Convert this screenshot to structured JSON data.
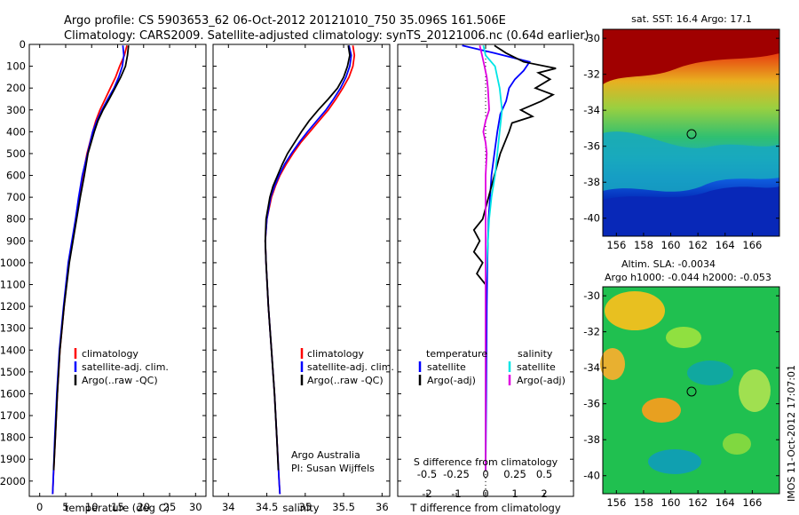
{
  "title": {
    "line1": "Argo profile: CS 5903653_62 06-Oct-2012 20121010_750 35.096S 161.506E",
    "line2": "Climatology: CARS2009. Satellite-adjusted climatology: synTS_20121006.nc (0.64d earlier)"
  },
  "chart_data": [
    {
      "type": "line",
      "name": "temperature-profile",
      "xlabel": "temperature (deg C)",
      "ylabel": "",
      "xlim": [
        -2,
        32
      ],
      "ylim": [
        2070,
        0
      ],
      "xticks": [
        "0",
        "5",
        "10",
        "15",
        "20",
        "25",
        "30"
      ],
      "yticks": [
        "0",
        "100",
        "200",
        "300",
        "400",
        "500",
        "600",
        "700",
        "800",
        "900",
        "1000",
        "1100",
        "1200",
        "1300",
        "1400",
        "1500",
        "1600",
        "1700",
        "1800",
        "1900",
        "2000"
      ],
      "legend": [
        "climatology",
        "satellite-adj. clim.",
        "Argo(..raw -QC)"
      ],
      "series": [
        {
          "name": "climatology",
          "color": "#ff0000",
          "pressure": [
            5,
            50,
            100,
            150,
            200,
            250,
            300,
            350,
            400,
            500,
            600,
            700,
            800,
            900,
            1000,
            1200,
            1400,
            1600,
            1800,
            2000,
            2060
          ],
          "values": [
            16.8,
            16.3,
            15.4,
            14.6,
            13.6,
            12.6,
            11.6,
            10.8,
            10.2,
            9.1,
            8.3,
            7.6,
            7.0,
            6.3,
            5.6,
            4.7,
            3.9,
            3.4,
            3.0,
            2.6,
            2.5
          ]
        },
        {
          "name": "satellite-adj. clim.",
          "color": "#0000ff",
          "pressure": [
            5,
            50,
            100,
            150,
            200,
            250,
            300,
            350,
            400,
            500,
            600,
            700,
            800,
            900,
            1000,
            1200,
            1400,
            1600,
            1800,
            2000,
            2060
          ],
          "values": [
            16.0,
            16.2,
            15.9,
            15.2,
            14.3,
            13.1,
            12.0,
            11.0,
            10.2,
            9.2,
            8.2,
            7.5,
            6.9,
            6.2,
            5.5,
            4.6,
            3.8,
            3.3,
            2.9,
            2.6,
            2.5
          ]
        },
        {
          "name": "Argo(..raw -QC)",
          "color": "#000000",
          "pressure": [
            5,
            50,
            100,
            150,
            200,
            250,
            300,
            350,
            400,
            500,
            600,
            700,
            800,
            900,
            1000,
            1200,
            1400,
            1600,
            1800,
            1950
          ],
          "values": [
            17.1,
            16.9,
            16.5,
            15.6,
            14.5,
            13.4,
            12.2,
            11.2,
            10.5,
            9.3,
            8.6,
            7.8,
            7.1,
            6.4,
            5.7,
            4.7,
            3.9,
            3.4,
            3.0,
            2.7
          ]
        }
      ]
    },
    {
      "type": "line",
      "name": "salinity-profile",
      "xlabel": "salinity",
      "xlim": [
        33.8,
        36.1
      ],
      "ylim": [
        2070,
        0
      ],
      "xticks": [
        "34",
        "34.5",
        "35",
        "35.5",
        "36"
      ],
      "legend": [
        "climatology",
        "satellite-adj. clim.",
        "Argo(..raw -QC)"
      ],
      "annotation": [
        "Argo Australia",
        "PI: Susan Wijffels"
      ],
      "series": [
        {
          "name": "climatology",
          "color": "#ff0000",
          "pressure": [
            5,
            50,
            100,
            150,
            200,
            250,
            300,
            350,
            400,
            450,
            500,
            550,
            600,
            650,
            700,
            800,
            900,
            1000,
            1200,
            1400,
            1600,
            1800,
            2000,
            2060
          ],
          "values": [
            35.62,
            35.64,
            35.62,
            35.57,
            35.49,
            35.4,
            35.3,
            35.18,
            35.06,
            34.94,
            34.84,
            34.75,
            34.67,
            34.61,
            34.56,
            34.5,
            34.48,
            34.49,
            34.52,
            34.56,
            34.6,
            34.63,
            34.66,
            34.67
          ]
        },
        {
          "name": "satellite-adj. clim.",
          "color": "#0000ff",
          "pressure": [
            5,
            50,
            100,
            150,
            200,
            250,
            300,
            350,
            400,
            450,
            500,
            550,
            600,
            650,
            700,
            800,
            900,
            1000,
            1200,
            1400,
            1600,
            1800,
            2000,
            2060
          ],
          "values": [
            35.57,
            35.6,
            35.58,
            35.53,
            35.46,
            35.37,
            35.27,
            35.15,
            35.03,
            34.92,
            34.82,
            34.73,
            34.66,
            34.6,
            34.55,
            34.5,
            34.48,
            34.49,
            34.52,
            34.56,
            34.6,
            34.63,
            34.66,
            34.67
          ]
        },
        {
          "name": "Argo(..raw -QC)",
          "color": "#000000",
          "pressure": [
            5,
            50,
            100,
            150,
            200,
            250,
            300,
            350,
            400,
            450,
            500,
            550,
            600,
            650,
            700,
            800,
            900,
            1000,
            1200,
            1400,
            1600,
            1800,
            1950
          ],
          "values": [
            35.56,
            35.58,
            35.55,
            35.5,
            35.42,
            35.3,
            35.17,
            35.05,
            34.95,
            34.86,
            34.77,
            34.7,
            34.64,
            34.58,
            34.54,
            34.49,
            34.48,
            34.49,
            34.52,
            34.56,
            34.6,
            34.63,
            34.65
          ]
        }
      ]
    },
    {
      "type": "line",
      "name": "difference-from-climatology",
      "xlabel": "T difference from climatology",
      "xlabel_top": "S difference from climatology",
      "xlim": [
        -3,
        3
      ],
      "ylim": [
        2070,
        0
      ],
      "xticks": [
        "-2",
        "-1",
        "0",
        "1",
        "2"
      ],
      "xticks_top": [
        "-0.5",
        "-0.25",
        "0",
        "0.25",
        "0.5"
      ],
      "legend_left_title": "temperature",
      "legend_right_title": "salinity",
      "legend_left": [
        "satellite",
        "Argo(-adj)"
      ],
      "legend_right": [
        "satellite",
        "Argo(-adj)"
      ],
      "series": [
        {
          "name": "temperature satellite",
          "color": "#0000ff",
          "pressure": [
            5,
            40,
            80,
            120,
            160,
            200,
            260,
            320,
            400,
            500,
            600,
            700,
            800,
            900,
            1000,
            1100,
            1200,
            1400,
            1600,
            1800,
            1950
          ],
          "values": [
            -0.8,
            0.3,
            1.5,
            1.3,
            1.0,
            0.8,
            0.7,
            0.5,
            0.4,
            0.3,
            0.2,
            0.15,
            0.1,
            0.08,
            0.06,
            0.05,
            0.04,
            0.03,
            0.02,
            0.01,
            0.0
          ]
        },
        {
          "name": "temperature Argo(-adj)",
          "color": "#000000",
          "pressure": [
            5,
            40,
            80,
            110,
            130,
            160,
            200,
            230,
            260,
            300,
            330,
            360,
            400,
            500,
            600,
            700,
            800,
            850,
            900,
            950,
            1000,
            1050,
            1100,
            1200,
            1400,
            1600,
            1800,
            1950
          ],
          "values": [
            0.3,
            0.7,
            1.3,
            2.4,
            1.8,
            2.2,
            1.7,
            2.3,
            1.9,
            1.2,
            1.6,
            0.9,
            0.8,
            0.5,
            0.3,
            0.1,
            -0.1,
            -0.4,
            -0.2,
            -0.4,
            -0.1,
            -0.3,
            0.0,
            0.0,
            0.0,
            0.0,
            0.0,
            0.0
          ]
        },
        {
          "name": "salinity satellite",
          "color": "#00e5e5",
          "pressure": [
            5,
            50,
            100,
            150,
            200,
            300,
            400,
            500,
            600,
            700,
            800,
            900,
            1000,
            1100,
            1200,
            1400,
            1600,
            1800,
            1950
          ],
          "values": [
            -0.02,
            0.0,
            0.08,
            0.1,
            0.12,
            0.14,
            0.12,
            0.1,
            0.08,
            0.05,
            0.03,
            0.02,
            0.01,
            0.0,
            0.0,
            0.0,
            0.0,
            0.0,
            0.0
          ]
        },
        {
          "name": "salinity Argo(-adj)",
          "color": "#e000e0",
          "pressure": [
            5,
            50,
            100,
            150,
            200,
            300,
            350,
            400,
            450,
            500,
            600,
            700,
            800,
            900,
            1000,
            1200,
            1400,
            1600,
            1800,
            1950
          ],
          "values": [
            -0.05,
            -0.03,
            -0.01,
            0.01,
            0.02,
            0.03,
            0.0,
            -0.02,
            0.0,
            0.01,
            0.0,
            0.0,
            0.0,
            0.0,
            0.0,
            0.0,
            0.0,
            0.0,
            0.0,
            0.0
          ]
        }
      ]
    },
    {
      "type": "heatmap",
      "name": "sst-map",
      "title": "sat. SST: 16.4  Argo: 17.1",
      "xlim": [
        155,
        168
      ],
      "ylim": [
        -41,
        -29.5
      ],
      "xticks": [
        "156",
        "158",
        "160",
        "162",
        "164",
        "166"
      ],
      "yticks": [
        "-30",
        "-32",
        "-34",
        "-36",
        "-38",
        "-40"
      ],
      "marker": {
        "lon": 161.5,
        "lat": -35.1
      }
    },
    {
      "type": "heatmap",
      "name": "sla-map",
      "title_line1": "Altim. SLA: -0.0034",
      "title_line2": "Argo h1000: -0.044 h2000: -0.053",
      "xlim": [
        155,
        168
      ],
      "ylim": [
        -41,
        -29.5
      ],
      "xticks": [
        "156",
        "158",
        "160",
        "162",
        "164",
        "166"
      ],
      "yticks": [
        "-30",
        "-32",
        "-34",
        "-36",
        "-38",
        "-40"
      ],
      "marker": {
        "lon": 161.5,
        "lat": -35.1
      }
    }
  ],
  "side_note": "IMOS 11-Oct-2012 17:07:01"
}
